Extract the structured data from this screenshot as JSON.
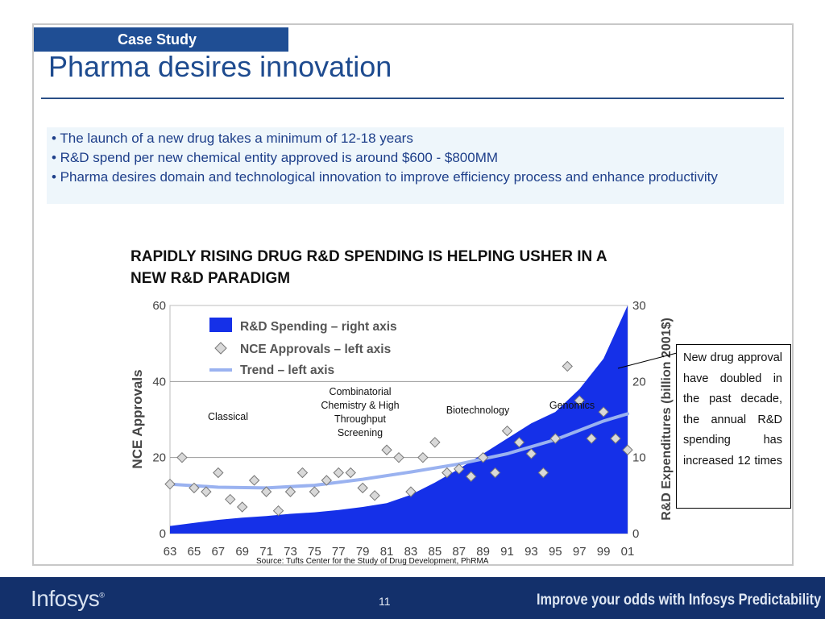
{
  "slide": {
    "tag": "Case Study",
    "title": "Pharma desires innovation",
    "bullets": [
      "• The launch of a new drug takes a minimum of 12-18 years",
      "• R&D spend per new chemical entity approved is around $600 - $800MM",
      "• Pharma desires domain and technological innovation to improve efficiency process and enhance productivity"
    ],
    "note": "New drug approval have doubled in the past decade, the annual R&D spending has increased 12 times",
    "source": "Source: Tufts Center for the Study of Drug Development, PhRMA",
    "eras": [
      "Classical",
      "Combinatorial Chemistry & High Throughput Screening",
      "Biotechnology",
      "Genomics"
    ],
    "footer": {
      "logo": "Infosys",
      "logo_mark": "®",
      "page_number": "11",
      "tagline": "Improve your odds with Infosys Predictability"
    }
  },
  "colors": {
    "accent": "#1f4e94",
    "area": "#1530e8",
    "trend": "#9ab2f0",
    "footer": "#13306b"
  },
  "chart_data": {
    "type": "area",
    "title": "RAPIDLY RISING DRUG R&D SPENDING IS HELPING USHER IN A NEW R&D PARADIGM",
    "ylabel": "NCE Approvals",
    "y2label": "R&D Expenditures (billion 2001$)",
    "ylim": [
      0,
      60
    ],
    "y2lim": [
      0,
      30
    ],
    "yticks": [
      0,
      20,
      40,
      60
    ],
    "y2ticks": [
      0,
      10,
      20,
      30
    ],
    "xlim": [
      1963,
      2001
    ],
    "xticks": [
      1963,
      1965,
      1967,
      1969,
      1971,
      1973,
      1975,
      1977,
      1979,
      1981,
      1983,
      1985,
      1987,
      1989,
      1991,
      1993,
      1995,
      1997,
      1999,
      2001
    ],
    "xtick_labels": [
      "63",
      "65",
      "67",
      "69",
      "71",
      "73",
      "75",
      "77",
      "79",
      "81",
      "83",
      "85",
      "87",
      "89",
      "91",
      "93",
      "95",
      "97",
      "99",
      "01"
    ],
    "legend": [
      "R&D Spending – right axis",
      "NCE Approvals – left axis",
      "Trend – left axis"
    ],
    "legend_position": "top-left",
    "grid": true,
    "series": [
      {
        "name": "R&D Spending – right axis",
        "axis": "right",
        "x": [
          1963,
          1965,
          1967,
          1969,
          1971,
          1973,
          1975,
          1977,
          1979,
          1981,
          1983,
          1985,
          1987,
          1989,
          1991,
          1993,
          1995,
          1997,
          1999,
          2001
        ],
        "y": [
          1.0,
          1.4,
          1.8,
          2.1,
          2.3,
          2.6,
          2.8,
          3.1,
          3.5,
          4.0,
          5.1,
          6.7,
          8.5,
          10.5,
          12.5,
          14.5,
          16.0,
          19.0,
          23.0,
          30.0
        ]
      },
      {
        "name": "NCE Approvals – left axis",
        "axis": "left",
        "x": [
          1963,
          1964,
          1965,
          1966,
          1967,
          1968,
          1969,
          1970,
          1971,
          1972,
          1973,
          1974,
          1975,
          1976,
          1977,
          1978,
          1979,
          1980,
          1981,
          1982,
          1983,
          1984,
          1985,
          1986,
          1987,
          1988,
          1989,
          1990,
          1991,
          1992,
          1993,
          1994,
          1995,
          1996,
          1997,
          1998,
          1999,
          2000,
          2001
        ],
        "y": [
          13,
          20,
          12,
          11,
          16,
          9,
          7,
          14,
          11,
          6,
          11,
          16,
          11,
          14,
          16,
          16,
          12,
          10,
          22,
          20,
          11,
          20,
          24,
          16,
          17,
          15,
          20,
          16,
          27,
          24,
          21,
          16,
          25,
          44,
          35,
          25,
          32,
          25,
          22
        ]
      },
      {
        "name": "Trend – left axis",
        "axis": "left",
        "x": [
          1963,
          1967,
          1971,
          1975,
          1979,
          1983,
          1987,
          1991,
          1995,
          1999,
          2001
        ],
        "y": [
          13,
          12.2,
          12.0,
          12.7,
          14.3,
          16.2,
          18.3,
          21.0,
          24.7,
          29.6,
          31.5
        ]
      }
    ]
  }
}
